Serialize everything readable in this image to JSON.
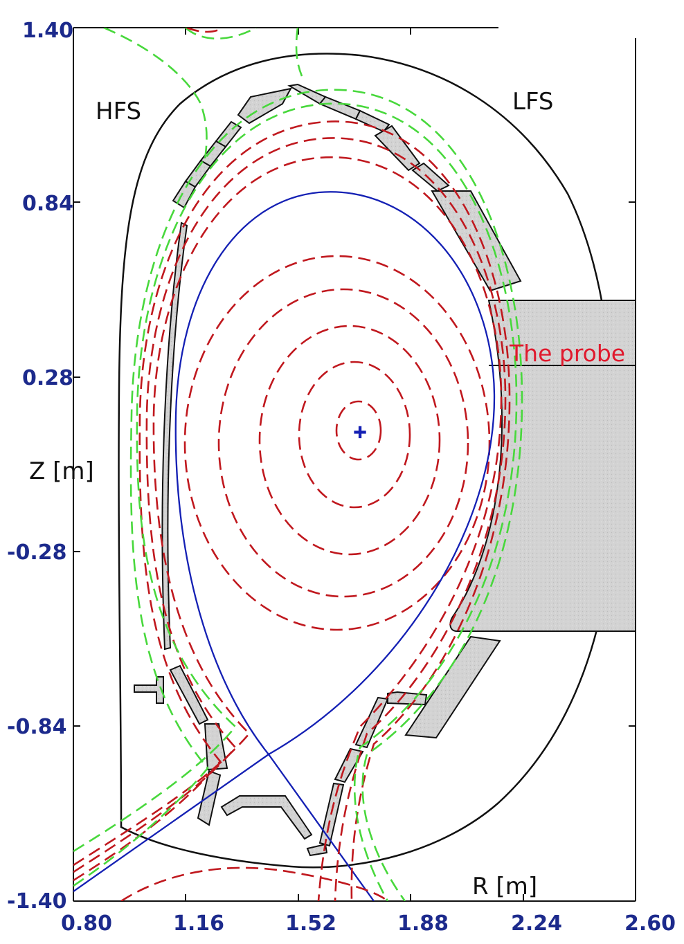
{
  "labels": {
    "hfs": "HFS",
    "lfs": "LFS",
    "z_axis": "Z [m]",
    "r_axis": "R [m]",
    "probe": "The probe"
  },
  "x_ticks": [
    "0.80",
    "1.16",
    "1.52",
    "1.88",
    "2.24",
    "2.60"
  ],
  "y_ticks": [
    "1.40",
    "0.84",
    "0.28",
    "-0.28",
    "-0.84",
    "-1.40"
  ],
  "colors": {
    "tick_label": "#1c2a8c",
    "separatrix": "#1420b4",
    "flux_red": "#c0181e",
    "flux_green": "#48d83c",
    "probe_label": "#e0192d",
    "tile_fill": "#d3d3d3",
    "outline": "#111111"
  },
  "magnetic_axis": {
    "symbol": "+"
  }
}
